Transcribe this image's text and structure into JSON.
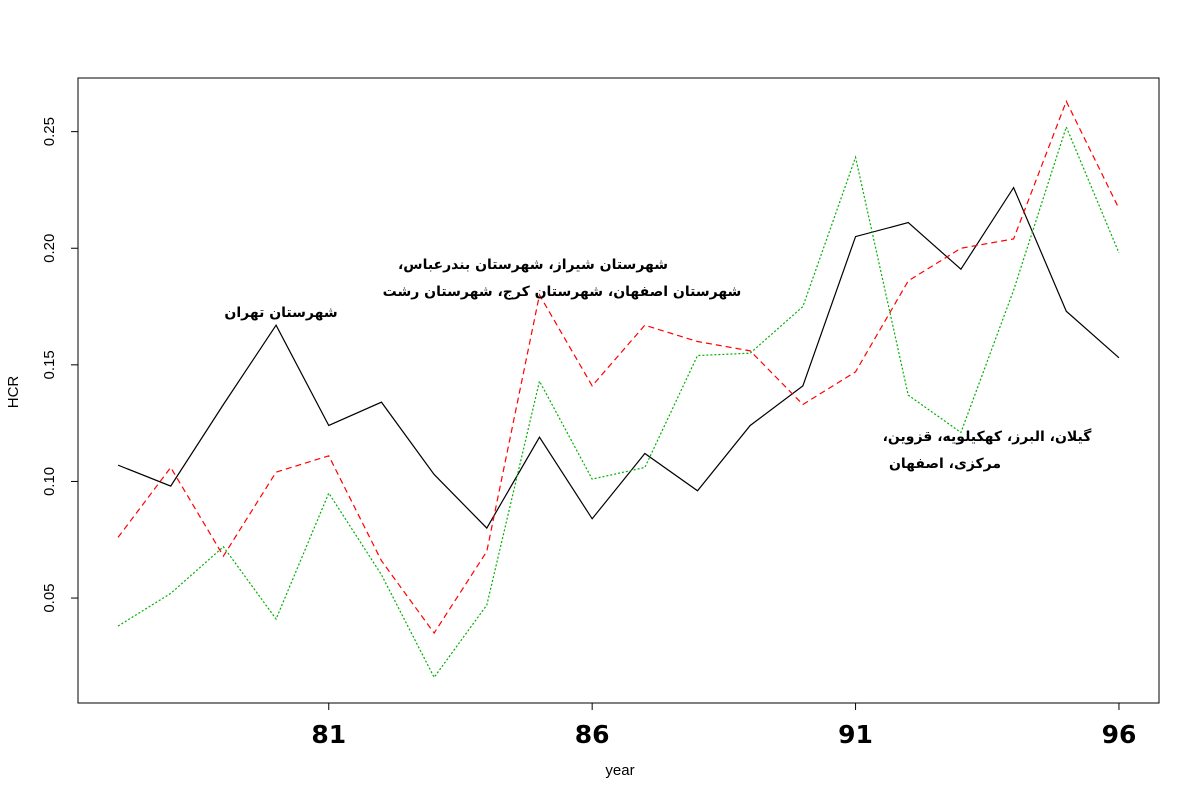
{
  "chart_data": {
    "type": "line",
    "x_label": "year",
    "y_label": "HCR",
    "x": [
      77,
      78,
      79,
      80,
      81,
      82,
      83,
      84,
      85,
      86,
      87,
      88,
      89,
      90,
      91,
      92,
      93,
      94,
      95,
      96
    ],
    "series": [
      {
        "color": "#000000",
        "style": "solid",
        "values": [
          0.107,
          0.098,
          0.133,
          0.167,
          0.124,
          0.134,
          0.103,
          0.08,
          0.119,
          0.084,
          0.112,
          0.096,
          0.124,
          0.141,
          0.205,
          0.211,
          0.191,
          0.226,
          0.173,
          0.153
        ]
      },
      {
        "color": "#ff0000",
        "style": "dashed",
        "values": [
          0.076,
          0.106,
          0.068,
          0.104,
          0.111,
          0.066,
          0.035,
          0.07,
          0.18,
          0.141,
          0.167,
          0.16,
          0.156,
          0.133,
          0.147,
          0.186,
          0.2,
          0.204,
          0.263,
          0.217
        ]
      },
      {
        "color": "#00b000",
        "style": "dotted",
        "values": [
          0.038,
          0.052,
          0.072,
          0.041,
          0.095,
          0.06,
          0.016,
          0.047,
          0.143,
          0.101,
          0.106,
          0.154,
          0.155,
          0.175,
          0.239,
          0.137,
          0.121,
          0.182,
          0.252,
          0.198
        ]
      }
    ],
    "xlim": [
      76.24,
      96.76
    ],
    "xticks": [
      81,
      86,
      91,
      96
    ],
    "ylim": [
      0.005,
      0.273
    ],
    "yticks": [
      0.05,
      {
        "value": 0.1,
        "label": "0.10"
      },
      0.15,
      {
        "value": 0.2,
        "label": "0.20"
      },
      0.25
    ],
    "grid": false,
    "annotations": [
      [
        "شهرستان تهران"
      ],
      [
        "شهرستان شیراز، شهرستان بندرعباس،",
        "شهرستان اصفهان، شهرستان کرج، شهرستان رشت"
      ],
      [
        "گیلان، البرز، کهکیلویه، قزوین،",
        "مرکزی، اصفهان"
      ]
    ]
  }
}
